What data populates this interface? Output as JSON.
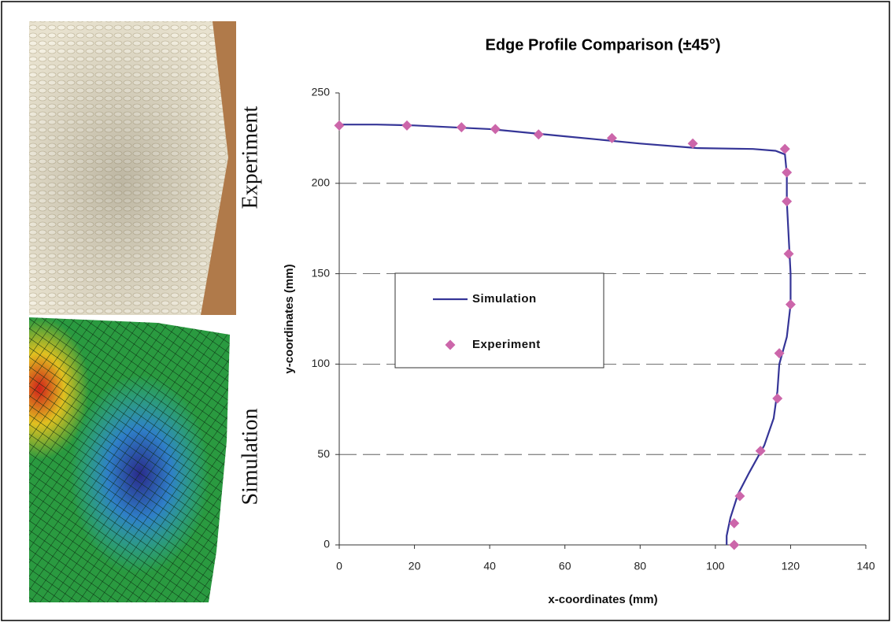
{
  "image_labels": [
    "Experiment",
    "Simulation"
  ],
  "chart_data": {
    "type": "line",
    "title": "Edge Profile Comparison (±45°)",
    "x_label": "x-coordinates (mm)",
    "y_label": "y-coordinates (mm)",
    "xlim": [
      0,
      140
    ],
    "xticks": [
      0,
      20,
      40,
      60,
      80,
      100,
      120,
      140
    ],
    "ylim": [
      0,
      250
    ],
    "yticks": [
      0,
      50,
      100,
      150,
      200,
      250
    ],
    "grid": true,
    "legend": "center-left",
    "series": [
      {
        "name": "Simulation",
        "color": "#353597",
        "style": "line",
        "x": [
          0,
          10,
          20,
          40,
          60,
          80,
          95,
          110,
          116,
          118.5,
          119,
          119,
          119.5,
          120,
          120,
          119,
          117,
          116.5,
          115.5,
          113,
          109,
          106,
          104,
          103,
          103
        ],
        "values": [
          232.5,
          232.5,
          232,
          230,
          226,
          222,
          219.5,
          219,
          218,
          216,
          205,
          190,
          170,
          150,
          133,
          115,
          100,
          85,
          70,
          55,
          40,
          28,
          15,
          5,
          0
        ]
      },
      {
        "name": "Experiment",
        "color": "#cc66aa",
        "style": "diamond",
        "x": [
          0,
          18,
          32.5,
          41.5,
          53,
          72.5,
          94,
          118.5,
          119,
          119,
          119.5,
          120,
          117,
          116.5,
          112,
          106.5,
          105,
          105
        ],
        "values": [
          232,
          232,
          231,
          230,
          227,
          225,
          222,
          219,
          206,
          190,
          161,
          133,
          106,
          81,
          52,
          27,
          12,
          0
        ]
      }
    ]
  }
}
